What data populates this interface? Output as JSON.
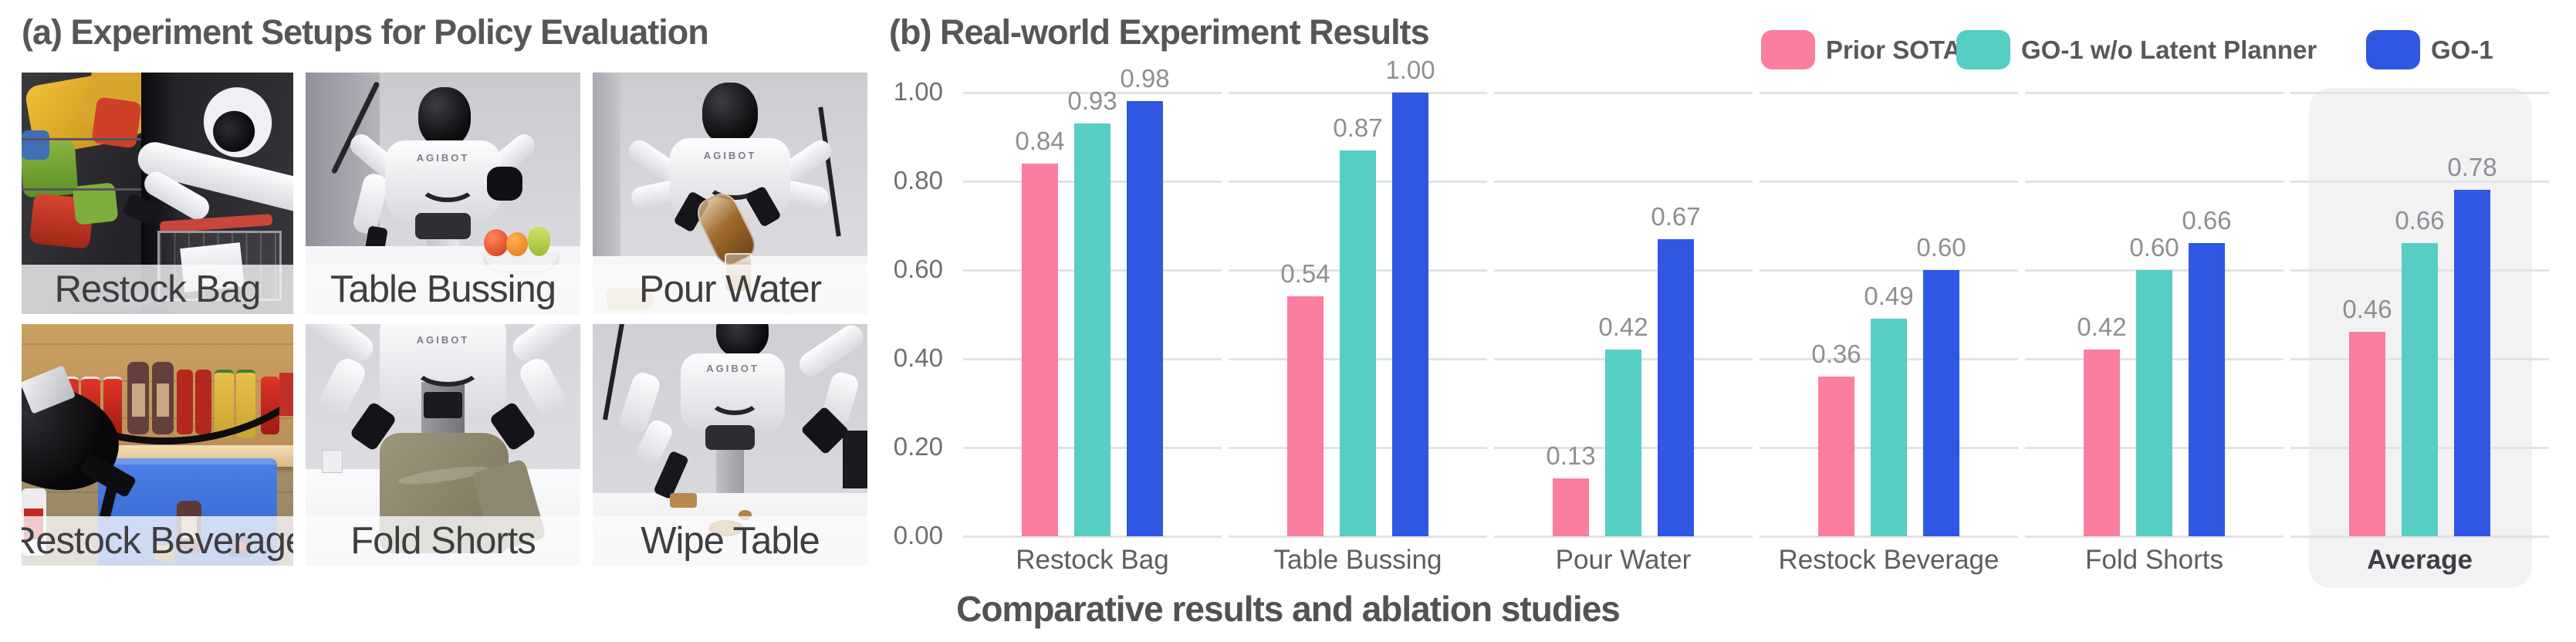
{
  "panel_a": {
    "title": "(a) Experiment Setups for Policy Evaluation",
    "robot_logo": "AGIBOT",
    "photos": [
      {
        "label": "Restock Bag"
      },
      {
        "label": "Table Bussing"
      },
      {
        "label": "Pour Water"
      },
      {
        "label": "Restock Beverage"
      },
      {
        "label": "Fold Shorts"
      },
      {
        "label": "Wipe Table"
      }
    ]
  },
  "panel_b": {
    "title": "(b) Real-world Experiment Results",
    "caption": "Comparative results and ablation studies"
  },
  "chart_data": {
    "type": "bar",
    "title": "(b) Real-world Experiment Results",
    "categories": [
      "Restock Bag",
      "Table Bussing",
      "Pour Water",
      "Restock Beverage",
      "Fold Shorts",
      "Average"
    ],
    "series": [
      {
        "name": "Prior SOTA",
        "color": "#F97E9F",
        "values": [
          0.84,
          0.54,
          0.13,
          0.36,
          0.42,
          0.46
        ]
      },
      {
        "name": "GO-1 w/o Latent Planner",
        "color": "#56CEC4",
        "values": [
          0.93,
          0.87,
          0.42,
          0.49,
          0.6,
          0.66
        ]
      },
      {
        "name": "GO-1",
        "color": "#2F57E2",
        "values": [
          0.98,
          1.0,
          0.67,
          0.6,
          0.66,
          0.78
        ]
      }
    ],
    "y_ticks": [
      "0.00",
      "0.20",
      "0.40",
      "0.60",
      "0.80",
      "1.00"
    ],
    "ylim": [
      0,
      1.0
    ],
    "grid": true,
    "legend_position": "top-right",
    "highlight_category": "Average",
    "grid_color": "#e3e3e6",
    "highlight_color": "#f2f2f4",
    "value_label_color": "#8e8f92"
  }
}
